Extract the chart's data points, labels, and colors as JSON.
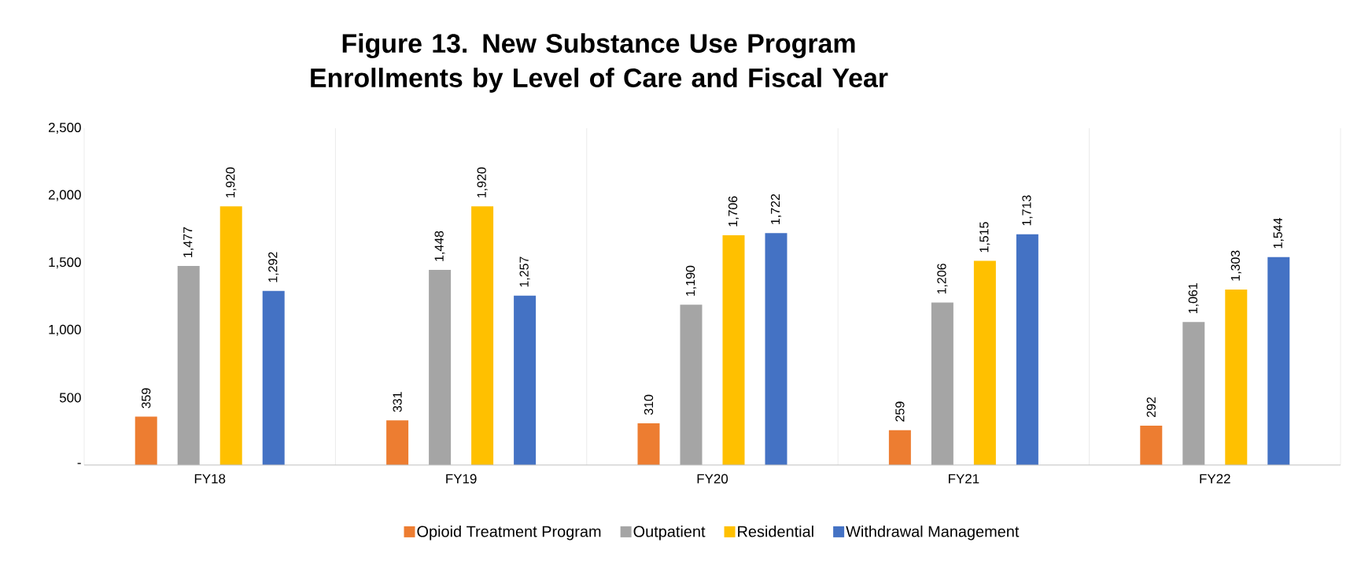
{
  "chart_data": {
    "type": "bar",
    "title": "Figure 13. New Substance Use Program Enrollments by Level of Care and Fiscal Year",
    "categories": [
      "FY18",
      "FY19",
      "FY20",
      "FY21",
      "FY22"
    ],
    "series": [
      {
        "name": "Opioid Treatment Program",
        "color": "#ed7d31",
        "values": [
          359,
          331,
          310,
          259,
          292
        ],
        "value_labels": [
          "359",
          "331",
          "310",
          "259",
          "292"
        ]
      },
      {
        "name": "Outpatient",
        "color": "#a5a5a5",
        "values": [
          1477,
          1448,
          1190,
          1206,
          1061
        ],
        "value_labels": [
          "1,477",
          "1,448",
          "1,190",
          "1,206",
          "1,061"
        ]
      },
      {
        "name": "Residential",
        "color": "#ffc000",
        "values": [
          1920,
          1920,
          1706,
          1515,
          1303
        ],
        "value_labels": [
          "1,920",
          "1,920",
          "1,706",
          "1,515",
          "1,303"
        ]
      },
      {
        "name": "Withdrawal Management",
        "color": "#4472c4",
        "values": [
          1292,
          1257,
          1722,
          1713,
          1544
        ],
        "value_labels": [
          "1,292",
          "1,257",
          "1,722",
          "1,713",
          "1,544"
        ]
      }
    ],
    "ylim": [
      0,
      2500
    ],
    "yticks": [
      {
        "value": 0,
        "label": "-"
      },
      {
        "value": 500,
        "label": "500"
      },
      {
        "value": 1000,
        "label": "1,000"
      },
      {
        "value": 1500,
        "label": "1,500"
      },
      {
        "value": 2000,
        "label": "2,000"
      },
      {
        "value": 2500,
        "label": "2,500"
      }
    ],
    "grid": "x",
    "legend": "bottom"
  }
}
